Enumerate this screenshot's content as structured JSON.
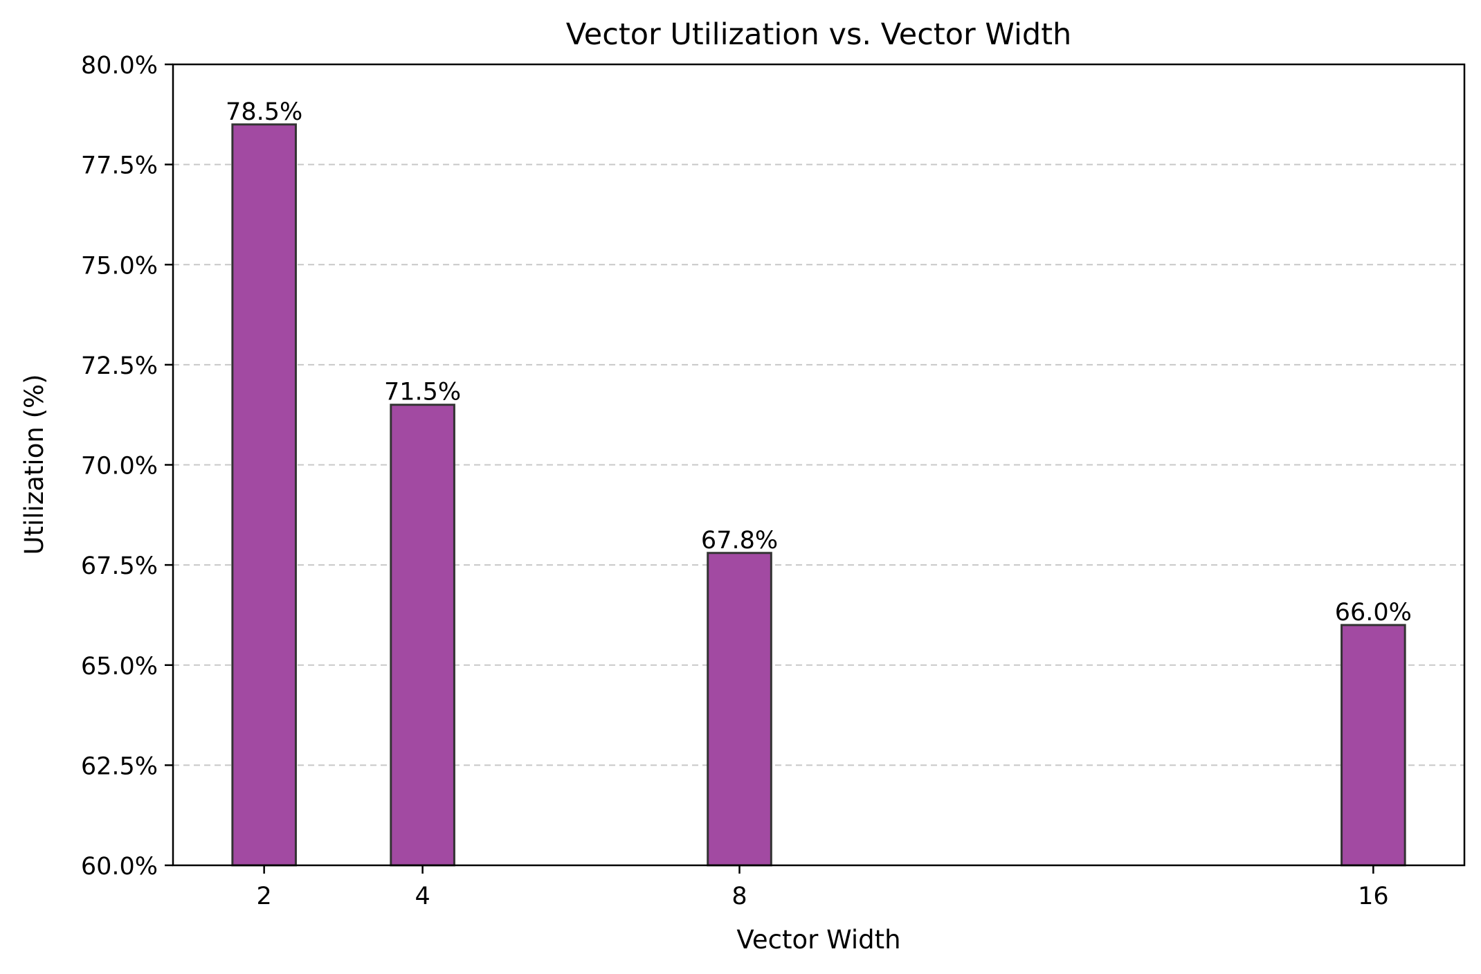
{
  "chart_data": {
    "type": "bar",
    "title": "Vector Utilization vs. Vector Width",
    "xlabel": "Vector Width",
    "ylabel": "Utilization (%)",
    "x": [
      2,
      4,
      8,
      16
    ],
    "categories": [
      "2",
      "4",
      "8",
      "16"
    ],
    "values": [
      78.5,
      71.5,
      67.8,
      66.0
    ],
    "data_labels": [
      "78.5%",
      "71.5%",
      "67.8%",
      "66.0%"
    ],
    "ylim": [
      60,
      80
    ],
    "xlim": [
      0.85,
      17.15
    ],
    "bar_width": 0.8,
    "yticks": [
      60,
      62.5,
      65,
      67.5,
      70,
      72.5,
      75,
      77.5,
      80
    ],
    "ytick_labels": [
      "60.0%",
      "62.5%",
      "65.0%",
      "67.5%",
      "70.0%",
      "72.5%",
      "75.0%",
      "77.5%",
      "80.0%"
    ],
    "grid": "y-dashed",
    "bar_color": "#a24aa2",
    "bar_edge_color": "#333333",
    "grid_color": "#c8c8c8"
  }
}
